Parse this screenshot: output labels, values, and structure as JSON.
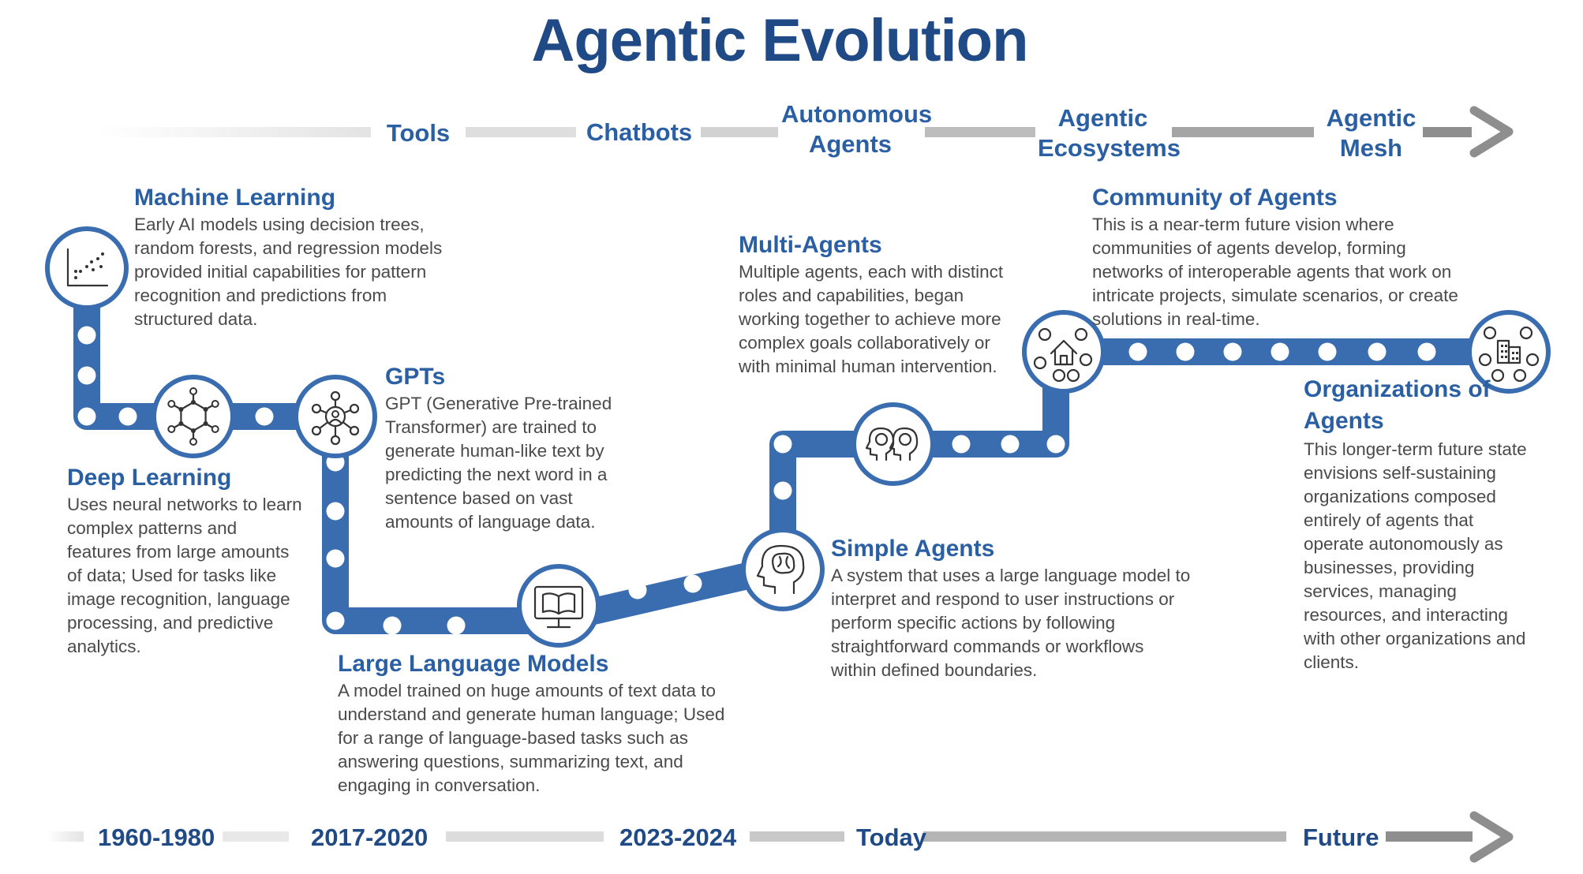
{
  "title": "Agentic Evolution",
  "stages": [
    "Tools",
    "Chatbots",
    "Autonomous Agents",
    "Agentic Ecosystems",
    "Agentic Mesh"
  ],
  "years": [
    "1960-1980",
    "2017-2020",
    "2023-2024",
    "Today",
    "Future"
  ],
  "milestones": [
    {
      "heading": "Machine Learning",
      "icon": "scatter-plot-icon",
      "description": "Early AI models using decision trees, random forests, and regression models provided initial capabilities for pattern recognition and predictions from structured data."
    },
    {
      "heading": "Deep Learning",
      "icon": "neural-network-icon",
      "description": "Uses neural networks to learn complex patterns and features from large amounts of data; Used for tasks like image recognition, language processing, and predictive analytics."
    },
    {
      "heading": "GPTs",
      "icon": "network-person-icon",
      "description": "GPT (Generative Pre-trained Transformer) are trained to generate human-like text by predicting the next word in a sentence based on vast amounts of language data."
    },
    {
      "heading": "Large Language Models",
      "icon": "book-monitor-icon",
      "description": "A model trained on huge amounts of text data to understand and generate human language; Used for a range of language-based tasks such as answering questions, summarizing text, and engaging in conversation."
    },
    {
      "heading": "Simple Agents",
      "icon": "brain-head-icon",
      "description": "A system that uses a large language model to interpret and respond to user instructions or perform specific actions by following straightforward commands or workflows within defined boundaries."
    },
    {
      "heading": "Multi-Agents",
      "icon": "two-brain-heads-icon",
      "description": "Multiple agents, each with distinct roles and capabilities, began working together to achieve more complex goals collaboratively or with minimal human intervention."
    },
    {
      "heading": "Community of Agents",
      "icon": "community-house-icon",
      "description": "This is a near-term future vision where communities of agents develop, forming networks of interoperable agents that work on intricate projects, simulate scenarios, or create solutions in real-time."
    },
    {
      "heading": "Organizations of Agents",
      "icon": "organization-building-icon",
      "description": "This longer-term future state envisions self-sustaining organizations composed entirely of agents that operate autonomously as businesses, providing services, managing resources, and interacting with other organizations and clients."
    }
  ],
  "colors": {
    "path": "#3a6db0",
    "dark_blue": "#1f4a86",
    "accent_blue": "#2a5fa4",
    "body_text": "#4a4a4a"
  }
}
